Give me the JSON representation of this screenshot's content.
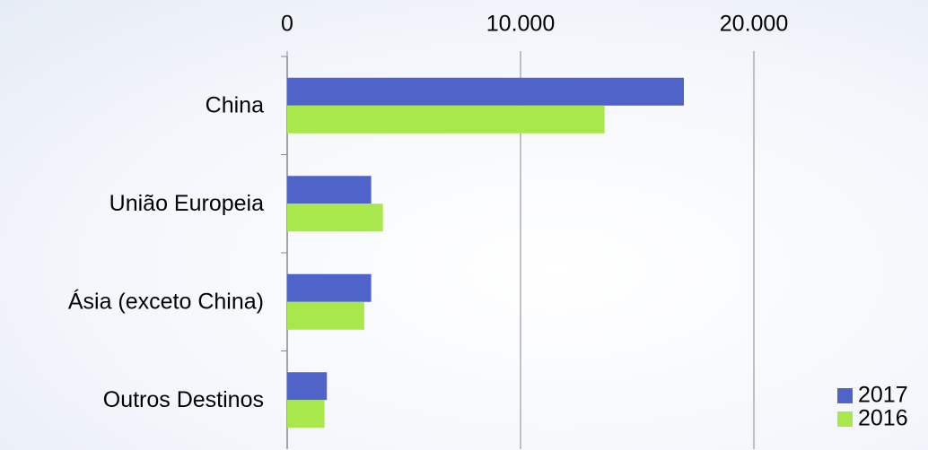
{
  "chart_data": {
    "type": "hbar",
    "categories": [
      "China",
      "União Europeia",
      "Ásia (exceto China)",
      "Outros Destinos"
    ],
    "series": [
      {
        "name": "2017",
        "color": "#4f63c9",
        "values": [
          17000,
          3600,
          3600,
          1700
        ]
      },
      {
        "name": "2016",
        "color": "#a8e84a",
        "values": [
          13600,
          4100,
          3300,
          1600
        ]
      }
    ],
    "xlim": [
      0,
      20000
    ],
    "xticks": [
      0,
      {
        "value": 10000,
        "label": "10.000"
      },
      {
        "value": 20000,
        "label": "20.000"
      }
    ],
    "grid": true,
    "legend": "bottom-right"
  }
}
